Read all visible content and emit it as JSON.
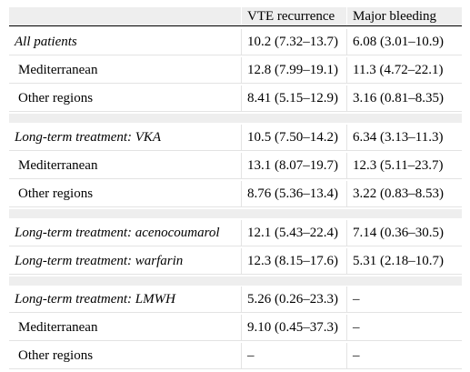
{
  "header": {
    "col_label": "",
    "col_vte": "VTE recurrence",
    "col_bleeding": "Major bleeding"
  },
  "rows": [
    {
      "label": "All patients",
      "vte": "10.2 (7.32–13.7)",
      "bleeding": "6.08 (3.01–10.9)",
      "italic": true
    },
    {
      "label": "Mediterranean",
      "vte": "12.8 (7.99–19.1)",
      "bleeding": "11.3 (4.72–22.1)",
      "italic": false
    },
    {
      "label": "Other regions",
      "vte": "8.41 (5.15–12.9)",
      "bleeding": "3.16 (0.81–8.35)",
      "italic": false
    },
    {
      "label": "Long-term treatment: VKA",
      "vte": "10.5 (7.50–14.2)",
      "bleeding": "6.34 (3.13–11.3)",
      "italic": true
    },
    {
      "label": "Mediterranean",
      "vte": "13.1 (8.07–19.7)",
      "bleeding": "12.3 (5.11–23.7)",
      "italic": false
    },
    {
      "label": "Other regions",
      "vte": "8.76 (5.36–13.4)",
      "bleeding": "3.22 (0.83–8.53)",
      "italic": false
    },
    {
      "label": "Long-term treatment: acenocoumarol",
      "vte": "12.1 (5.43–22.4)",
      "bleeding": "7.14 (0.36–30.5)",
      "italic": true
    },
    {
      "label": "Long-term treatment: warfarin",
      "vte": "12.3 (8.15–17.6)",
      "bleeding": "5.31 (2.18–10.7)",
      "italic": true
    },
    {
      "label": "Long-term treatment: LMWH",
      "vte": "5.26 (0.26–23.3)",
      "bleeding": "–",
      "italic": true
    },
    {
      "label": "Mediterranean",
      "vte": "9.10 (0.45–37.3)",
      "bleeding": "–",
      "italic": false
    },
    {
      "label": "Other regions",
      "vte": "–",
      "bleeding": "–",
      "italic": false
    }
  ]
}
